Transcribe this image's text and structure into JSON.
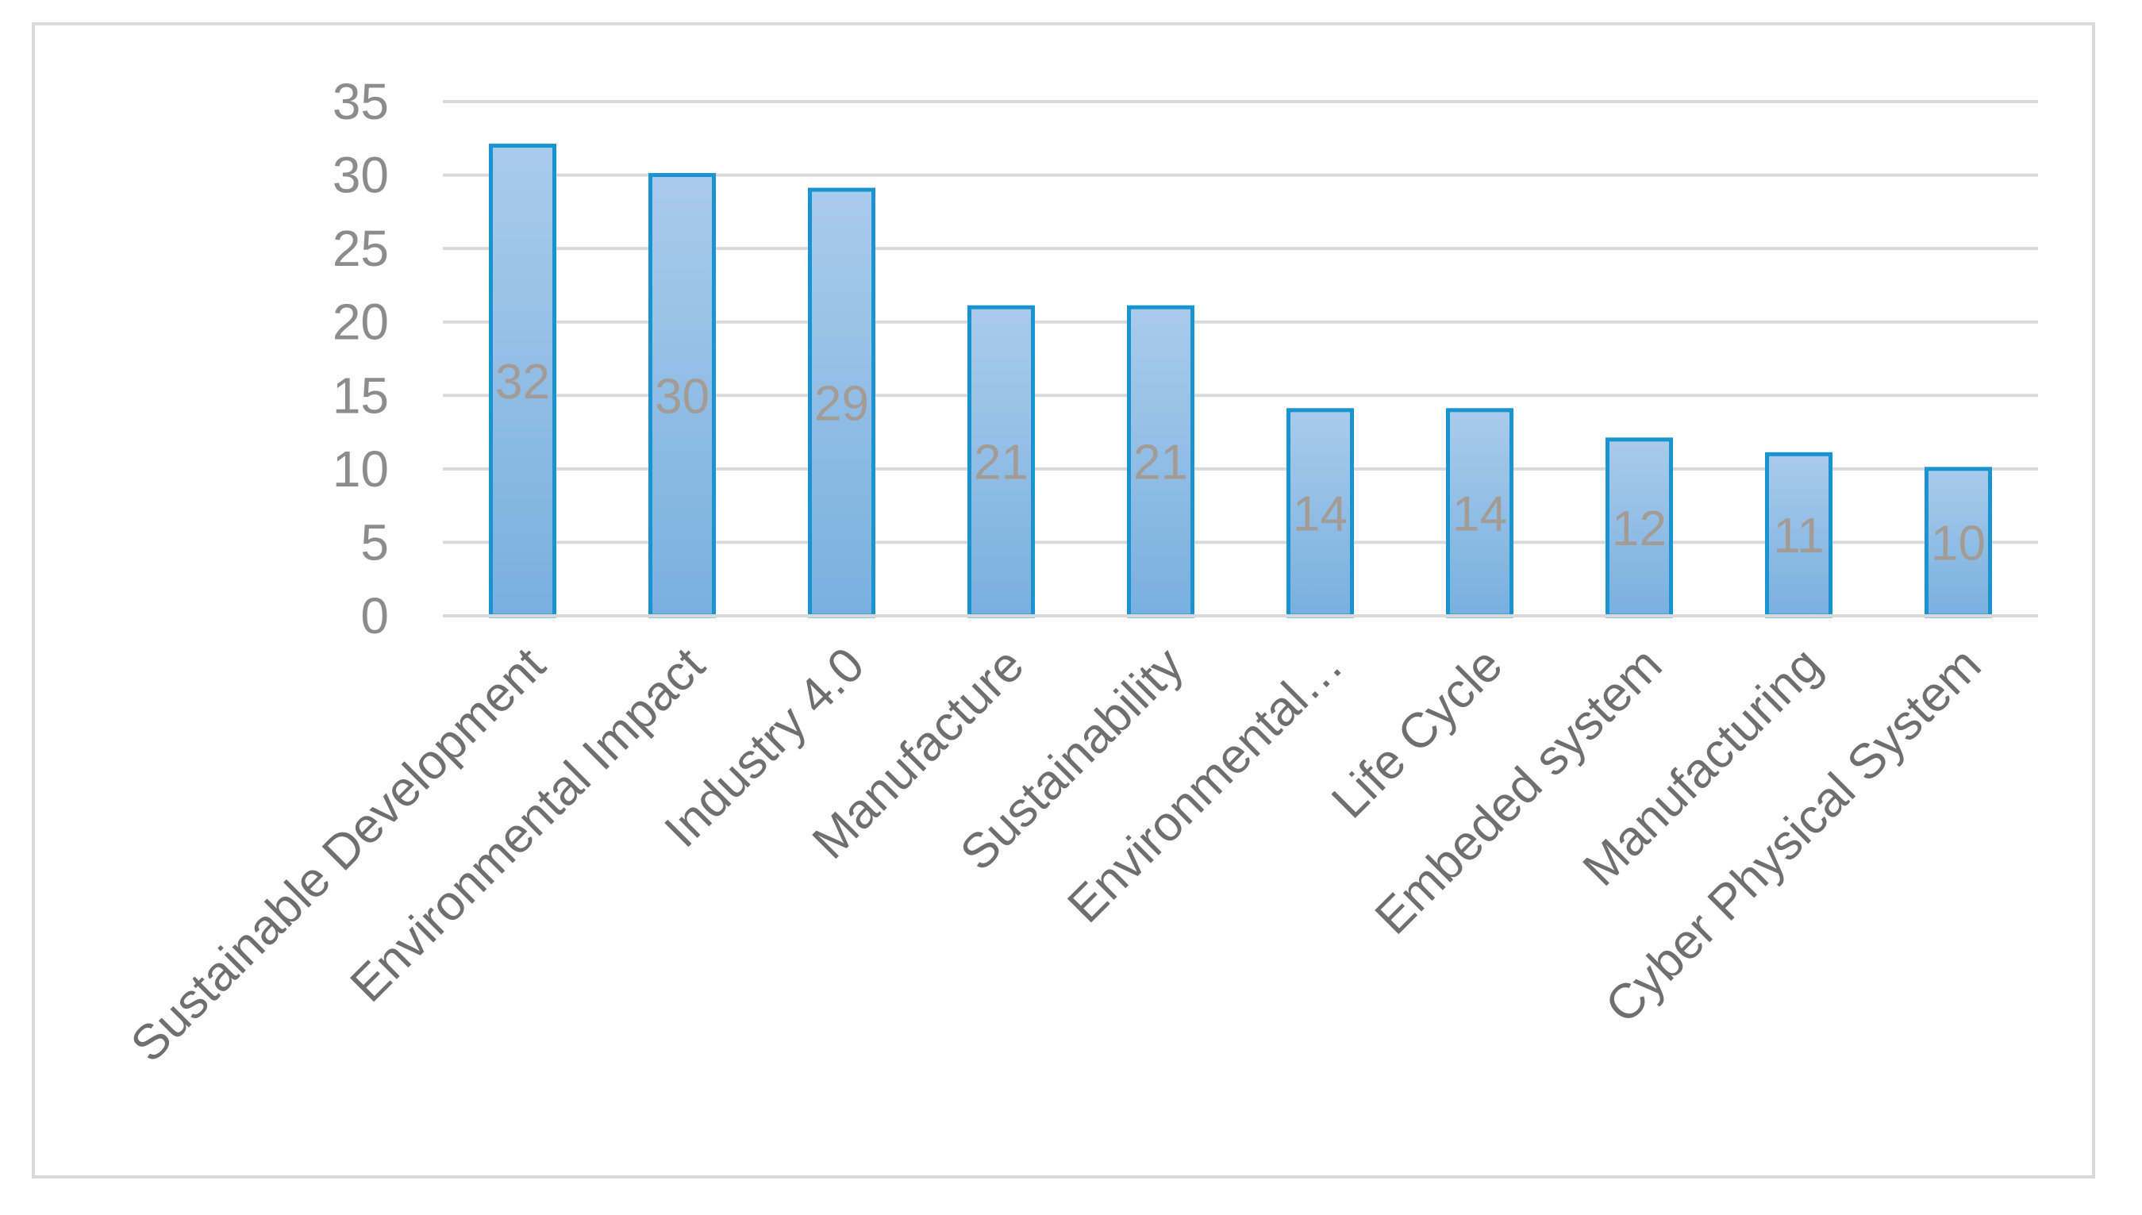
{
  "chart_data": {
    "type": "bar",
    "categories": [
      "Sustainable Development",
      "Environmental Impact",
      "Industry 4.0",
      "Manufacture",
      "Sustainability",
      "Environmental…",
      "Life Cycle",
      "Embeded system",
      "Manufacturing",
      "Cyber Physical System"
    ],
    "values": [
      32,
      30,
      29,
      21,
      21,
      14,
      14,
      12,
      11,
      10
    ],
    "data_labels": [
      "32",
      "30",
      "29",
      "21",
      "21",
      "14",
      "14",
      "12",
      "11",
      "10"
    ],
    "title": "",
    "xlabel": "",
    "ylabel": "",
    "ylim": [
      0,
      35
    ],
    "yticks": [
      "0",
      "5",
      "10",
      "15",
      "20",
      "25",
      "30",
      "35"
    ],
    "grid": true,
    "legend": "none",
    "colors": {
      "bar_fill_top": "#a9cbeb",
      "bar_fill_bottom": "#79b0df",
      "bar_stroke": "#1a93d1",
      "grid": "#d9d9d9",
      "axis": "#d9d9d9",
      "tick_text": "#8c8c8c",
      "category_text": "#6f6f6f",
      "data_label_text": "#a39b95"
    }
  }
}
